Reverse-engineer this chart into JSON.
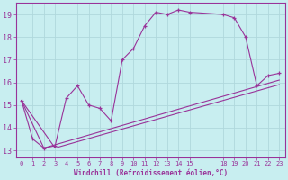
{
  "background_color": "#c8eef0",
  "grid_color": "#b0d8dc",
  "line_color": "#993399",
  "xlabel": "Windchill (Refroidissement éolien,°C)",
  "xlim": [
    -0.5,
    23.5
  ],
  "ylim": [
    12.7,
    19.5
  ],
  "yticks": [
    13,
    14,
    15,
    16,
    17,
    18,
    19
  ],
  "xticks": [
    0,
    1,
    2,
    3,
    4,
    5,
    6,
    7,
    8,
    9,
    10,
    11,
    12,
    13,
    14,
    15,
    18,
    19,
    20,
    21,
    22,
    23
  ],
  "series1": [
    [
      0,
      15.2
    ],
    [
      1,
      13.5
    ],
    [
      2,
      13.1
    ],
    [
      3,
      13.2
    ],
    [
      4,
      15.3
    ],
    [
      5,
      15.85
    ],
    [
      6,
      15.0
    ],
    [
      7,
      14.85
    ],
    [
      8,
      14.3
    ],
    [
      9,
      17.0
    ],
    [
      10,
      17.5
    ],
    [
      11,
      18.5
    ],
    [
      12,
      19.1
    ],
    [
      13,
      19.0
    ],
    [
      14,
      19.2
    ],
    [
      15,
      19.1
    ],
    [
      18,
      19.0
    ],
    [
      19,
      18.85
    ],
    [
      20,
      18.0
    ],
    [
      21,
      15.85
    ],
    [
      22,
      16.3
    ],
    [
      23,
      16.4
    ]
  ],
  "series2": [
    [
      0,
      15.2
    ],
    [
      2,
      13.1
    ],
    [
      23,
      16.1
    ]
  ],
  "series3": [
    [
      0,
      15.2
    ],
    [
      3,
      13.1
    ],
    [
      23,
      15.9
    ]
  ]
}
